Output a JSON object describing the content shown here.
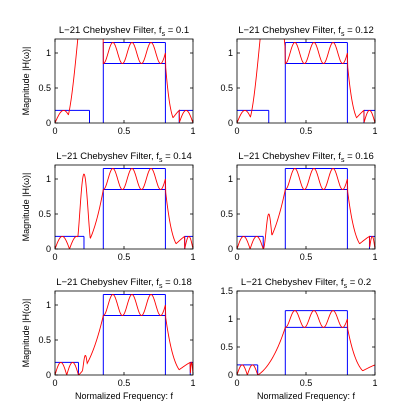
{
  "chart_data": [
    {
      "type": "line",
      "title": "L−21 Chebyshev Filter, f",
      "title_subscript": "s",
      "title_suffix": " = 0.1",
      "xlabel": "",
      "ylabel": "Magnitude |H(ω)|",
      "xlim": [
        0,
        1
      ],
      "ylim": [
        0,
        1.2
      ],
      "xticks": [
        "0",
        "0.5",
        "1"
      ],
      "yticks": [
        "0",
        "0.5",
        "1"
      ],
      "transition_width": 0.1,
      "pass_lo": 0.35,
      "pass_hi": 0.8,
      "ripple_periods": 3.25,
      "envelope": {
        "upper": 1.15,
        "lower": 0.85,
        "stop": 0.18
      },
      "sidelobes": [
        {
          "center": 0.27,
          "width": 0.2,
          "height": 2.6,
          "halfwidth": 0.045
        }
      ],
      "left_peaks": 2,
      "right_peaks": 1
    },
    {
      "type": "line",
      "title": "L−21 Chebyshev Filter, f",
      "title_subscript": "s",
      "title_suffix": " = 0.12",
      "xlabel": "",
      "ylabel": "",
      "xlim": [
        0,
        1
      ],
      "ylim": [
        0,
        1.2
      ],
      "xticks": [
        "0",
        "0.5",
        "1"
      ],
      "yticks": [
        "0",
        "0.5",
        "1"
      ],
      "transition_width": 0.12,
      "pass_lo": 0.35,
      "pass_hi": 0.8,
      "ripple_periods": 3.25,
      "envelope": {
        "upper": 1.15,
        "lower": 0.85,
        "stop": 0.18
      },
      "sidelobes": [
        {
          "center": 0.255,
          "width": 0.18,
          "height": 2.3,
          "halfwidth": 0.04
        }
      ],
      "left_peaks": 2,
      "right_peaks": 1
    },
    {
      "type": "line",
      "title": "L−21 Chebyshev Filter, f",
      "title_subscript": "s",
      "title_suffix": " = 0.14",
      "xlabel": "",
      "ylabel": "Magnitude |H(ω)|",
      "xlim": [
        0,
        1
      ],
      "ylim": [
        0,
        1.2
      ],
      "xticks": [
        "0",
        "0.5",
        "1"
      ],
      "yticks": [
        "0",
        "0.5",
        "1"
      ],
      "transition_width": 0.14,
      "pass_lo": 0.35,
      "pass_hi": 0.8,
      "ripple_periods": 3.25,
      "envelope": {
        "upper": 1.15,
        "lower": 0.85,
        "stop": 0.18
      },
      "sidelobes": [
        {
          "center": 0.21,
          "width": 0.06,
          "height": 1.07,
          "halfwidth": 0.035
        }
      ],
      "left_peaks": 2,
      "right_peaks": 1
    },
    {
      "type": "line",
      "title": "L−21 Chebyshev Filter, f",
      "title_subscript": "s",
      "title_suffix": " = 0.16",
      "xlabel": "",
      "ylabel": "",
      "xlim": [
        0,
        1
      ],
      "ylim": [
        0,
        1.2
      ],
      "xticks": [
        "0",
        "0.5",
        "1"
      ],
      "yticks": [
        "0",
        "0.5",
        "1"
      ],
      "transition_width": 0.16,
      "pass_lo": 0.35,
      "pass_hi": 0.8,
      "ripple_periods": 3.25,
      "envelope": {
        "upper": 1.15,
        "lower": 0.85,
        "stop": 0.18
      },
      "sidelobes": [
        {
          "center": 0.23,
          "width": 0.04,
          "height": 0.5,
          "halfwidth": 0.03
        }
      ],
      "left_peaks": 2,
      "right_peaks": 1
    },
    {
      "type": "line",
      "title": "L−21 Chebyshev Filter, f",
      "title_subscript": "s",
      "title_suffix": " = 0.18",
      "xlabel": "Normalized Frequency: f",
      "ylabel": "Magnitude |H(ω)|",
      "xlim": [
        0,
        1
      ],
      "ylim": [
        0,
        1.2
      ],
      "xticks": [
        "0",
        "0.5",
        "1"
      ],
      "yticks": [
        "0",
        "0.5",
        "1"
      ],
      "transition_width": 0.18,
      "pass_lo": 0.35,
      "pass_hi": 0.8,
      "ripple_periods": 3.25,
      "envelope": {
        "upper": 1.15,
        "lower": 0.85,
        "stop": 0.18
      },
      "sidelobes": [
        {
          "center": 0.22,
          "width": 0.03,
          "height": 0.28,
          "halfwidth": 0.025
        }
      ],
      "left_peaks": 2,
      "right_peaks": 1
    },
    {
      "type": "line",
      "title": "L−21 Chebyshev Filter, f",
      "title_subscript": "s",
      "title_suffix": " = 0.2",
      "xlabel": "Normalized Frequency: f",
      "ylabel": "",
      "xlim": [
        0,
        1
      ],
      "ylim": [
        0,
        1.5
      ],
      "xticks": [
        "0",
        "0.5",
        "1"
      ],
      "yticks": [
        "0",
        "0.5",
        "1",
        "1.5"
      ],
      "transition_width": 0.2,
      "pass_lo": 0.35,
      "pass_hi": 0.8,
      "ripple_periods": 3.25,
      "envelope": {
        "upper": 1.15,
        "lower": 0.85,
        "stop": 0.18
      },
      "sidelobes": [],
      "left_peaks": 2,
      "right_peaks": 1
    }
  ],
  "colors": {
    "response": "#ff0000",
    "mask": "#0000ff",
    "axes": "#000000"
  }
}
